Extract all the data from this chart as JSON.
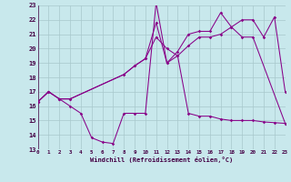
{
  "bg_color": "#c8e8ec",
  "grid_color": "#a8c8cc",
  "line_color": "#880088",
  "xlabel": "Windchill (Refroidissement éolien,°C)",
  "xmin": 0,
  "xmax": 23,
  "ymin": 13,
  "ymax": 23,
  "line1_x": [
    0,
    1,
    2,
    3,
    8,
    9,
    10,
    11,
    12,
    13,
    14,
    15,
    16,
    17,
    18,
    19,
    20,
    21,
    22,
    23
  ],
  "line1_y": [
    16.3,
    17.0,
    16.5,
    16.5,
    18.2,
    18.8,
    19.3,
    20.8,
    20.0,
    19.5,
    20.2,
    20.8,
    20.8,
    21.0,
    21.5,
    22.0,
    22.0,
    20.8,
    22.2,
    17.0
  ],
  "line2_x": [
    0,
    1,
    2,
    3,
    4,
    5,
    6,
    7,
    8,
    9,
    10,
    11,
    12,
    13,
    14,
    15,
    16,
    17,
    18,
    19,
    20,
    21,
    22,
    23
  ],
  "line2_y": [
    16.3,
    17.0,
    16.5,
    16.0,
    15.5,
    13.8,
    13.5,
    13.4,
    15.5,
    15.5,
    15.5,
    23.2,
    19.0,
    19.5,
    15.5,
    15.3,
    15.3,
    15.1,
    15.0,
    15.0,
    15.0,
    14.9,
    14.85,
    14.8
  ],
  "line3_x": [
    0,
    1,
    2,
    3,
    8,
    9,
    10,
    11,
    12,
    13,
    14,
    15,
    16,
    17,
    18,
    19,
    20,
    23
  ],
  "line3_y": [
    16.3,
    17.0,
    16.5,
    16.5,
    18.2,
    18.8,
    19.3,
    21.8,
    19.0,
    19.8,
    21.0,
    21.2,
    21.2,
    22.5,
    21.5,
    20.8,
    20.8,
    14.8
  ],
  "yticks": [
    13,
    14,
    15,
    16,
    17,
    18,
    19,
    20,
    21,
    22,
    23
  ],
  "xticks": [
    0,
    1,
    2,
    3,
    4,
    5,
    6,
    7,
    8,
    9,
    10,
    11,
    12,
    13,
    14,
    15,
    16,
    17,
    18,
    19,
    20,
    21,
    22,
    23
  ]
}
